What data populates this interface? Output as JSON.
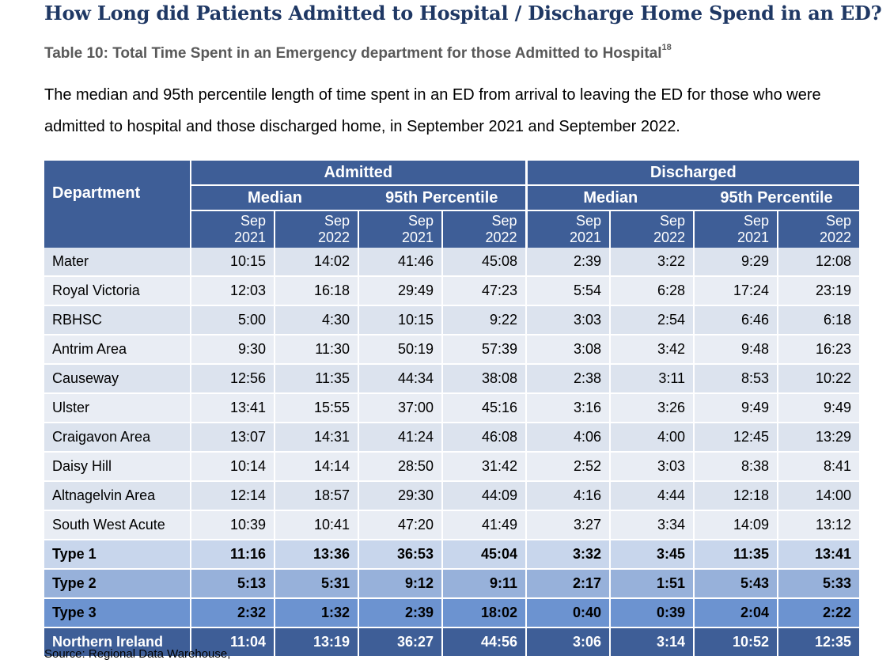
{
  "title": "How Long did Patients Admitted to Hospital / Discharge Home Spend in an ED?",
  "subtitle": "Table 10: Total Time Spent in an Emergency department for those Admitted to Hospital",
  "subtitle_sup": "18",
  "description": "The median and 95th percentile length of time spent in an ED from arrival to leaving the ED for those who were admitted to hospital and those discharged home, in September 2021 and September 2022.",
  "table": {
    "dept_header": "Department",
    "group_admitted": "Admitted",
    "group_discharged": "Discharged",
    "sub_median": "Median",
    "sub_p95": "95th Percentile",
    "month": "Sep",
    "year_2021": "2021",
    "year_2022": "2022",
    "rows": [
      {
        "name": "Mater",
        "v": [
          "10:15",
          "14:02",
          "41:46",
          "45:08",
          "2:39",
          "3:22",
          "9:29",
          "12:08"
        ]
      },
      {
        "name": "Royal Victoria",
        "v": [
          "12:03",
          "16:18",
          "29:49",
          "47:23",
          "5:54",
          "6:28",
          "17:24",
          "23:19"
        ]
      },
      {
        "name": "RBHSC",
        "v": [
          "5:00",
          "4:30",
          "10:15",
          "9:22",
          "3:03",
          "2:54",
          "6:46",
          "6:18"
        ]
      },
      {
        "name": "Antrim Area",
        "v": [
          "9:30",
          "11:30",
          "50:19",
          "57:39",
          "3:08",
          "3:42",
          "9:48",
          "16:23"
        ]
      },
      {
        "name": "Causeway",
        "v": [
          "12:56",
          "11:35",
          "44:34",
          "38:08",
          "2:38",
          "3:11",
          "8:53",
          "10:22"
        ]
      },
      {
        "name": "Ulster",
        "v": [
          "13:41",
          "15:55",
          "37:00",
          "45:16",
          "3:16",
          "3:26",
          "9:49",
          "9:49"
        ]
      },
      {
        "name": "Craigavon Area",
        "v": [
          "13:07",
          "14:31",
          "41:24",
          "46:08",
          "4:06",
          "4:00",
          "12:45",
          "13:29"
        ]
      },
      {
        "name": "Daisy Hill",
        "v": [
          "10:14",
          "14:14",
          "28:50",
          "31:42",
          "2:52",
          "3:03",
          "8:38",
          "8:41"
        ]
      },
      {
        "name": "Altnagelvin Area",
        "v": [
          "12:14",
          "18:57",
          "29:30",
          "44:09",
          "4:16",
          "4:44",
          "12:18",
          "14:00"
        ]
      },
      {
        "name": "South West Acute",
        "v": [
          "10:39",
          "10:41",
          "47:20",
          "41:49",
          "3:27",
          "3:34",
          "14:09",
          "13:12"
        ]
      },
      {
        "name": "Type 1",
        "v": [
          "11:16",
          "13:36",
          "36:53",
          "45:04",
          "3:32",
          "3:45",
          "11:35",
          "13:41"
        ]
      },
      {
        "name": "Type 2",
        "v": [
          "5:13",
          "5:31",
          "9:12",
          "9:11",
          "2:17",
          "1:51",
          "5:43",
          "5:33"
        ]
      },
      {
        "name": "Type 3",
        "v": [
          "2:32",
          "1:32",
          "2:39",
          "18:02",
          "0:40",
          "0:39",
          "2:04",
          "2:22"
        ]
      },
      {
        "name": "Northern Ireland",
        "v": [
          "11:04",
          "13:19",
          "36:27",
          "44:56",
          "3:06",
          "3:14",
          "10:52",
          "12:35"
        ]
      }
    ]
  },
  "source": "Source: Regional Data Warehouse,"
}
